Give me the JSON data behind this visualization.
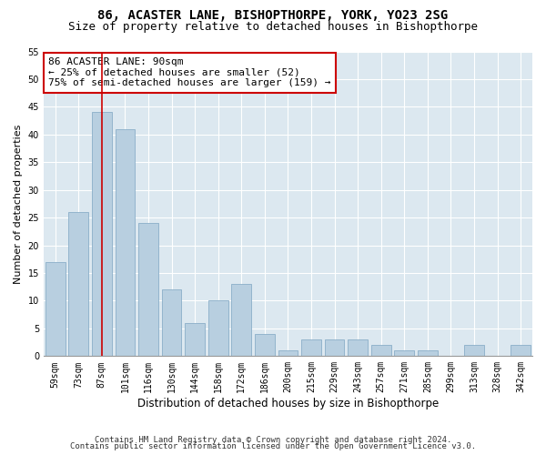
{
  "title1": "86, ACASTER LANE, BISHOPTHORPE, YORK, YO23 2SG",
  "title2": "Size of property relative to detached houses in Bishopthorpe",
  "xlabel": "Distribution of detached houses by size in Bishopthorpe",
  "ylabel": "Number of detached properties",
  "footnote1": "Contains HM Land Registry data © Crown copyright and database right 2024.",
  "footnote2": "Contains public sector information licensed under the Open Government Licence v3.0.",
  "categories": [
    "59sqm",
    "73sqm",
    "87sqm",
    "101sqm",
    "116sqm",
    "130sqm",
    "144sqm",
    "158sqm",
    "172sqm",
    "186sqm",
    "200sqm",
    "215sqm",
    "229sqm",
    "243sqm",
    "257sqm",
    "271sqm",
    "285sqm",
    "299sqm",
    "313sqm",
    "328sqm",
    "342sqm"
  ],
  "values": [
    17,
    26,
    44,
    41,
    24,
    12,
    6,
    10,
    13,
    4,
    1,
    3,
    3,
    3,
    2,
    1,
    1,
    0,
    2,
    0,
    2
  ],
  "bar_color": "#b8cfe0",
  "bar_edge_color": "#8aaec8",
  "bar_width": 0.85,
  "vline_x": 2,
  "vline_color": "#cc0000",
  "annotation_text": "86 ACASTER LANE: 90sqm\n← 25% of detached houses are smaller (52)\n75% of semi-detached houses are larger (159) →",
  "annotation_box_facecolor": "#ffffff",
  "annotation_box_edgecolor": "#cc0000",
  "ylim": [
    0,
    55
  ],
  "yticks": [
    0,
    5,
    10,
    15,
    20,
    25,
    30,
    35,
    40,
    45,
    50,
    55
  ],
  "fig_bg_color": "#ffffff",
  "plot_bg_color": "#dce8f0",
  "grid_color": "#ffffff",
  "title1_fontsize": 10,
  "title2_fontsize": 9,
  "xlabel_fontsize": 8.5,
  "ylabel_fontsize": 8,
  "tick_fontsize": 7,
  "annotation_fontsize": 8,
  "footnote_fontsize": 6.5
}
